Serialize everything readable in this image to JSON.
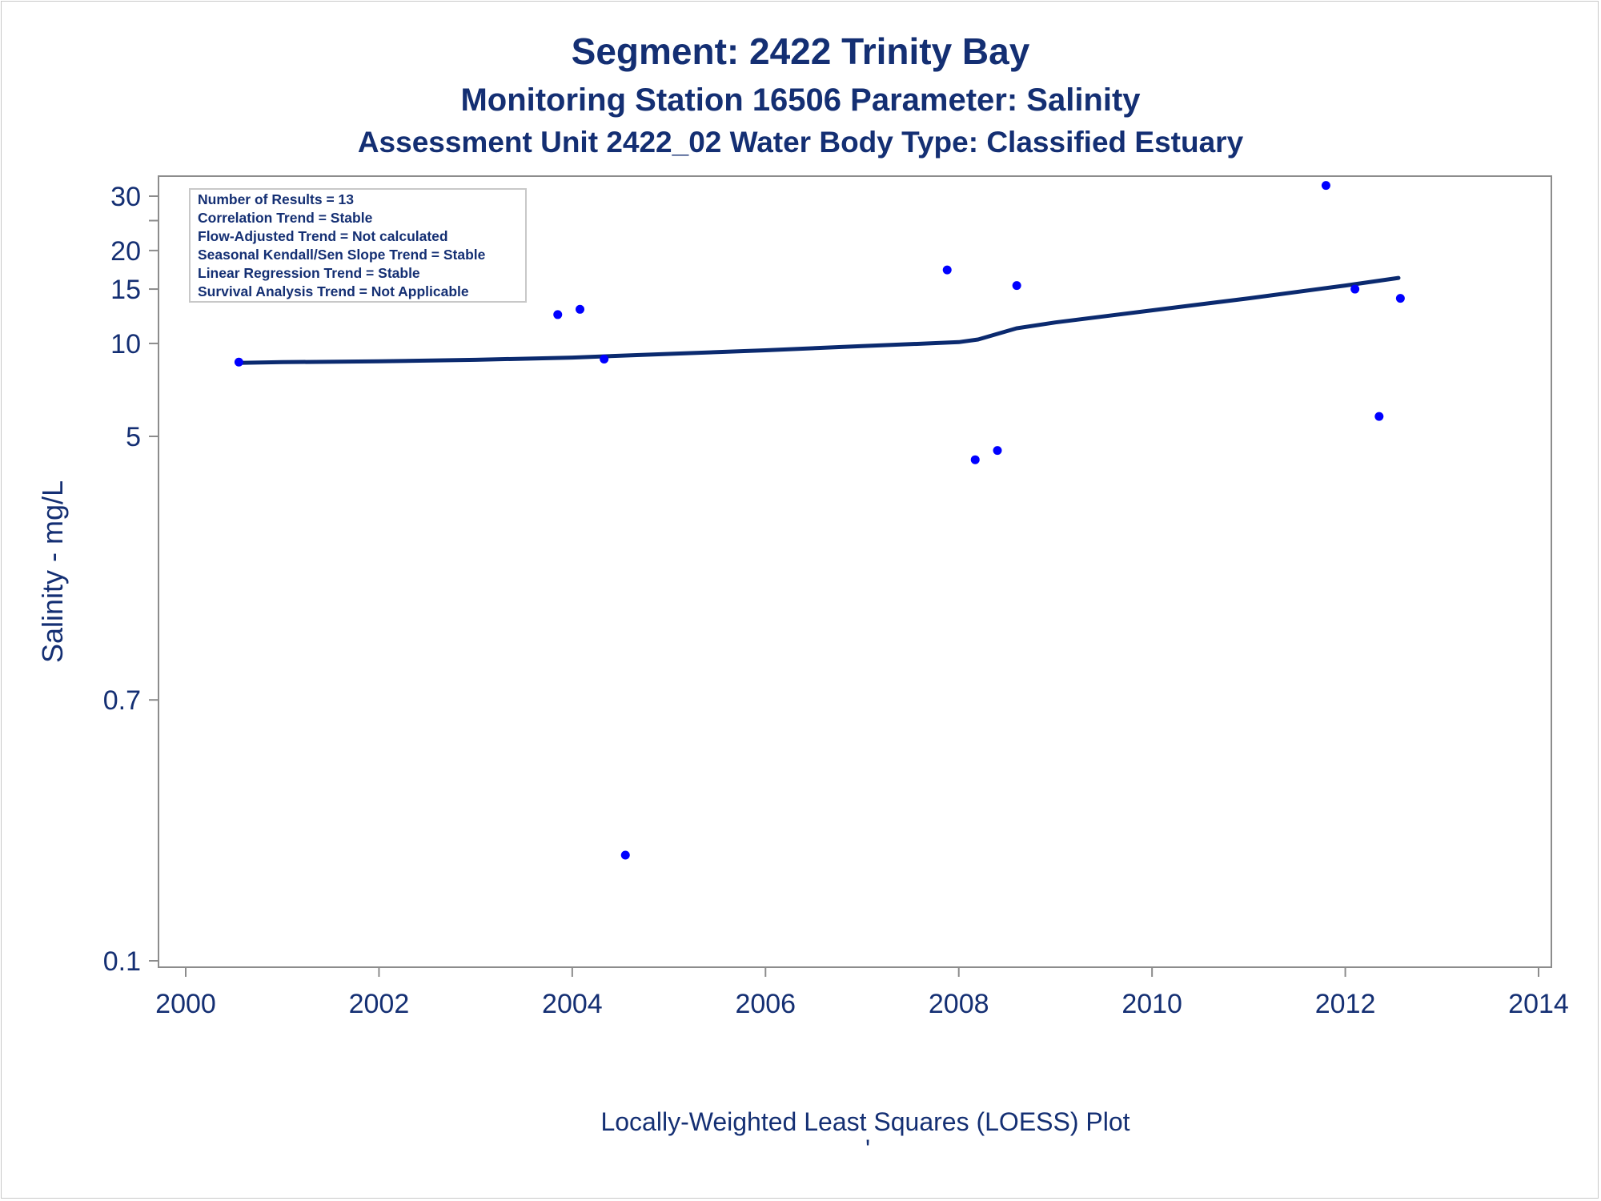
{
  "titles": {
    "line1": "Segment: 2422  Trinity Bay",
    "line2": "Monitoring Station 16506 Parameter: Salinity",
    "line3": "Assessment Unit 2422_02   Water Body Type: Classified Estuary"
  },
  "stats_box": {
    "lines": [
      "Number of Results = 13",
      "Correlation Trend = Stable",
      "Flow-Adjusted Trend = Not calculated",
      "Seasonal Kendall/Sen Slope Trend = Stable",
      "Linear Regression Trend = Stable",
      "Survival Analysis Trend = Not Applicable"
    ]
  },
  "footnote": "Locally-Weighted Least Squares (LOESS) Plot",
  "footnote_mark": "'",
  "colors": {
    "text": "#142f73",
    "points": "#0000ff",
    "line": "#0b2a6f",
    "axis": "#8c8c8c"
  },
  "chart_data": {
    "type": "scatter",
    "x_scale": "linear",
    "y_scale": "log",
    "xlabel": "",
    "ylabel": "Salinity - mg/L",
    "xlim": [
      2000,
      2014
    ],
    "ylim": [
      0.1,
      35
    ],
    "x_ticks": [
      2000,
      2002,
      2004,
      2006,
      2008,
      2010,
      2012,
      2014
    ],
    "y_ticks": [
      0.1,
      0.7,
      5,
      10,
      15,
      20,
      30
    ],
    "y_tick_labels": [
      "0.1",
      "0.7",
      "5",
      "10",
      "15",
      "20",
      "30"
    ],
    "y_minor_ticks": [
      25
    ],
    "grid": false,
    "series": [
      {
        "type": "scatter",
        "points": [
          {
            "x": 2000.55,
            "y": 8.7
          },
          {
            "x": 2003.85,
            "y": 12.4
          },
          {
            "x": 2004.08,
            "y": 12.9
          },
          {
            "x": 2004.33,
            "y": 8.9
          },
          {
            "x": 2004.55,
            "y": 0.22
          },
          {
            "x": 2007.88,
            "y": 17.3
          },
          {
            "x": 2008.17,
            "y": 4.2
          },
          {
            "x": 2008.4,
            "y": 4.5
          },
          {
            "x": 2008.6,
            "y": 15.4
          },
          {
            "x": 2011.8,
            "y": 32.5
          },
          {
            "x": 2012.1,
            "y": 15.0
          },
          {
            "x": 2012.35,
            "y": 5.8
          },
          {
            "x": 2012.57,
            "y": 14.0
          }
        ]
      },
      {
        "type": "line",
        "points": [
          {
            "x": 2000.55,
            "y": 8.65
          },
          {
            "x": 2001.0,
            "y": 8.7
          },
          {
            "x": 2002.0,
            "y": 8.75
          },
          {
            "x": 2003.0,
            "y": 8.85
          },
          {
            "x": 2004.0,
            "y": 9.0
          },
          {
            "x": 2005.0,
            "y": 9.25
          },
          {
            "x": 2006.0,
            "y": 9.5
          },
          {
            "x": 2007.0,
            "y": 9.8
          },
          {
            "x": 2008.0,
            "y": 10.1
          },
          {
            "x": 2008.2,
            "y": 10.3
          },
          {
            "x": 2008.6,
            "y": 11.2
          },
          {
            "x": 2009.0,
            "y": 11.7
          },
          {
            "x": 2010.0,
            "y": 12.8
          },
          {
            "x": 2011.0,
            "y": 14.0
          },
          {
            "x": 2012.0,
            "y": 15.4
          },
          {
            "x": 2012.55,
            "y": 16.3
          }
        ]
      }
    ]
  }
}
